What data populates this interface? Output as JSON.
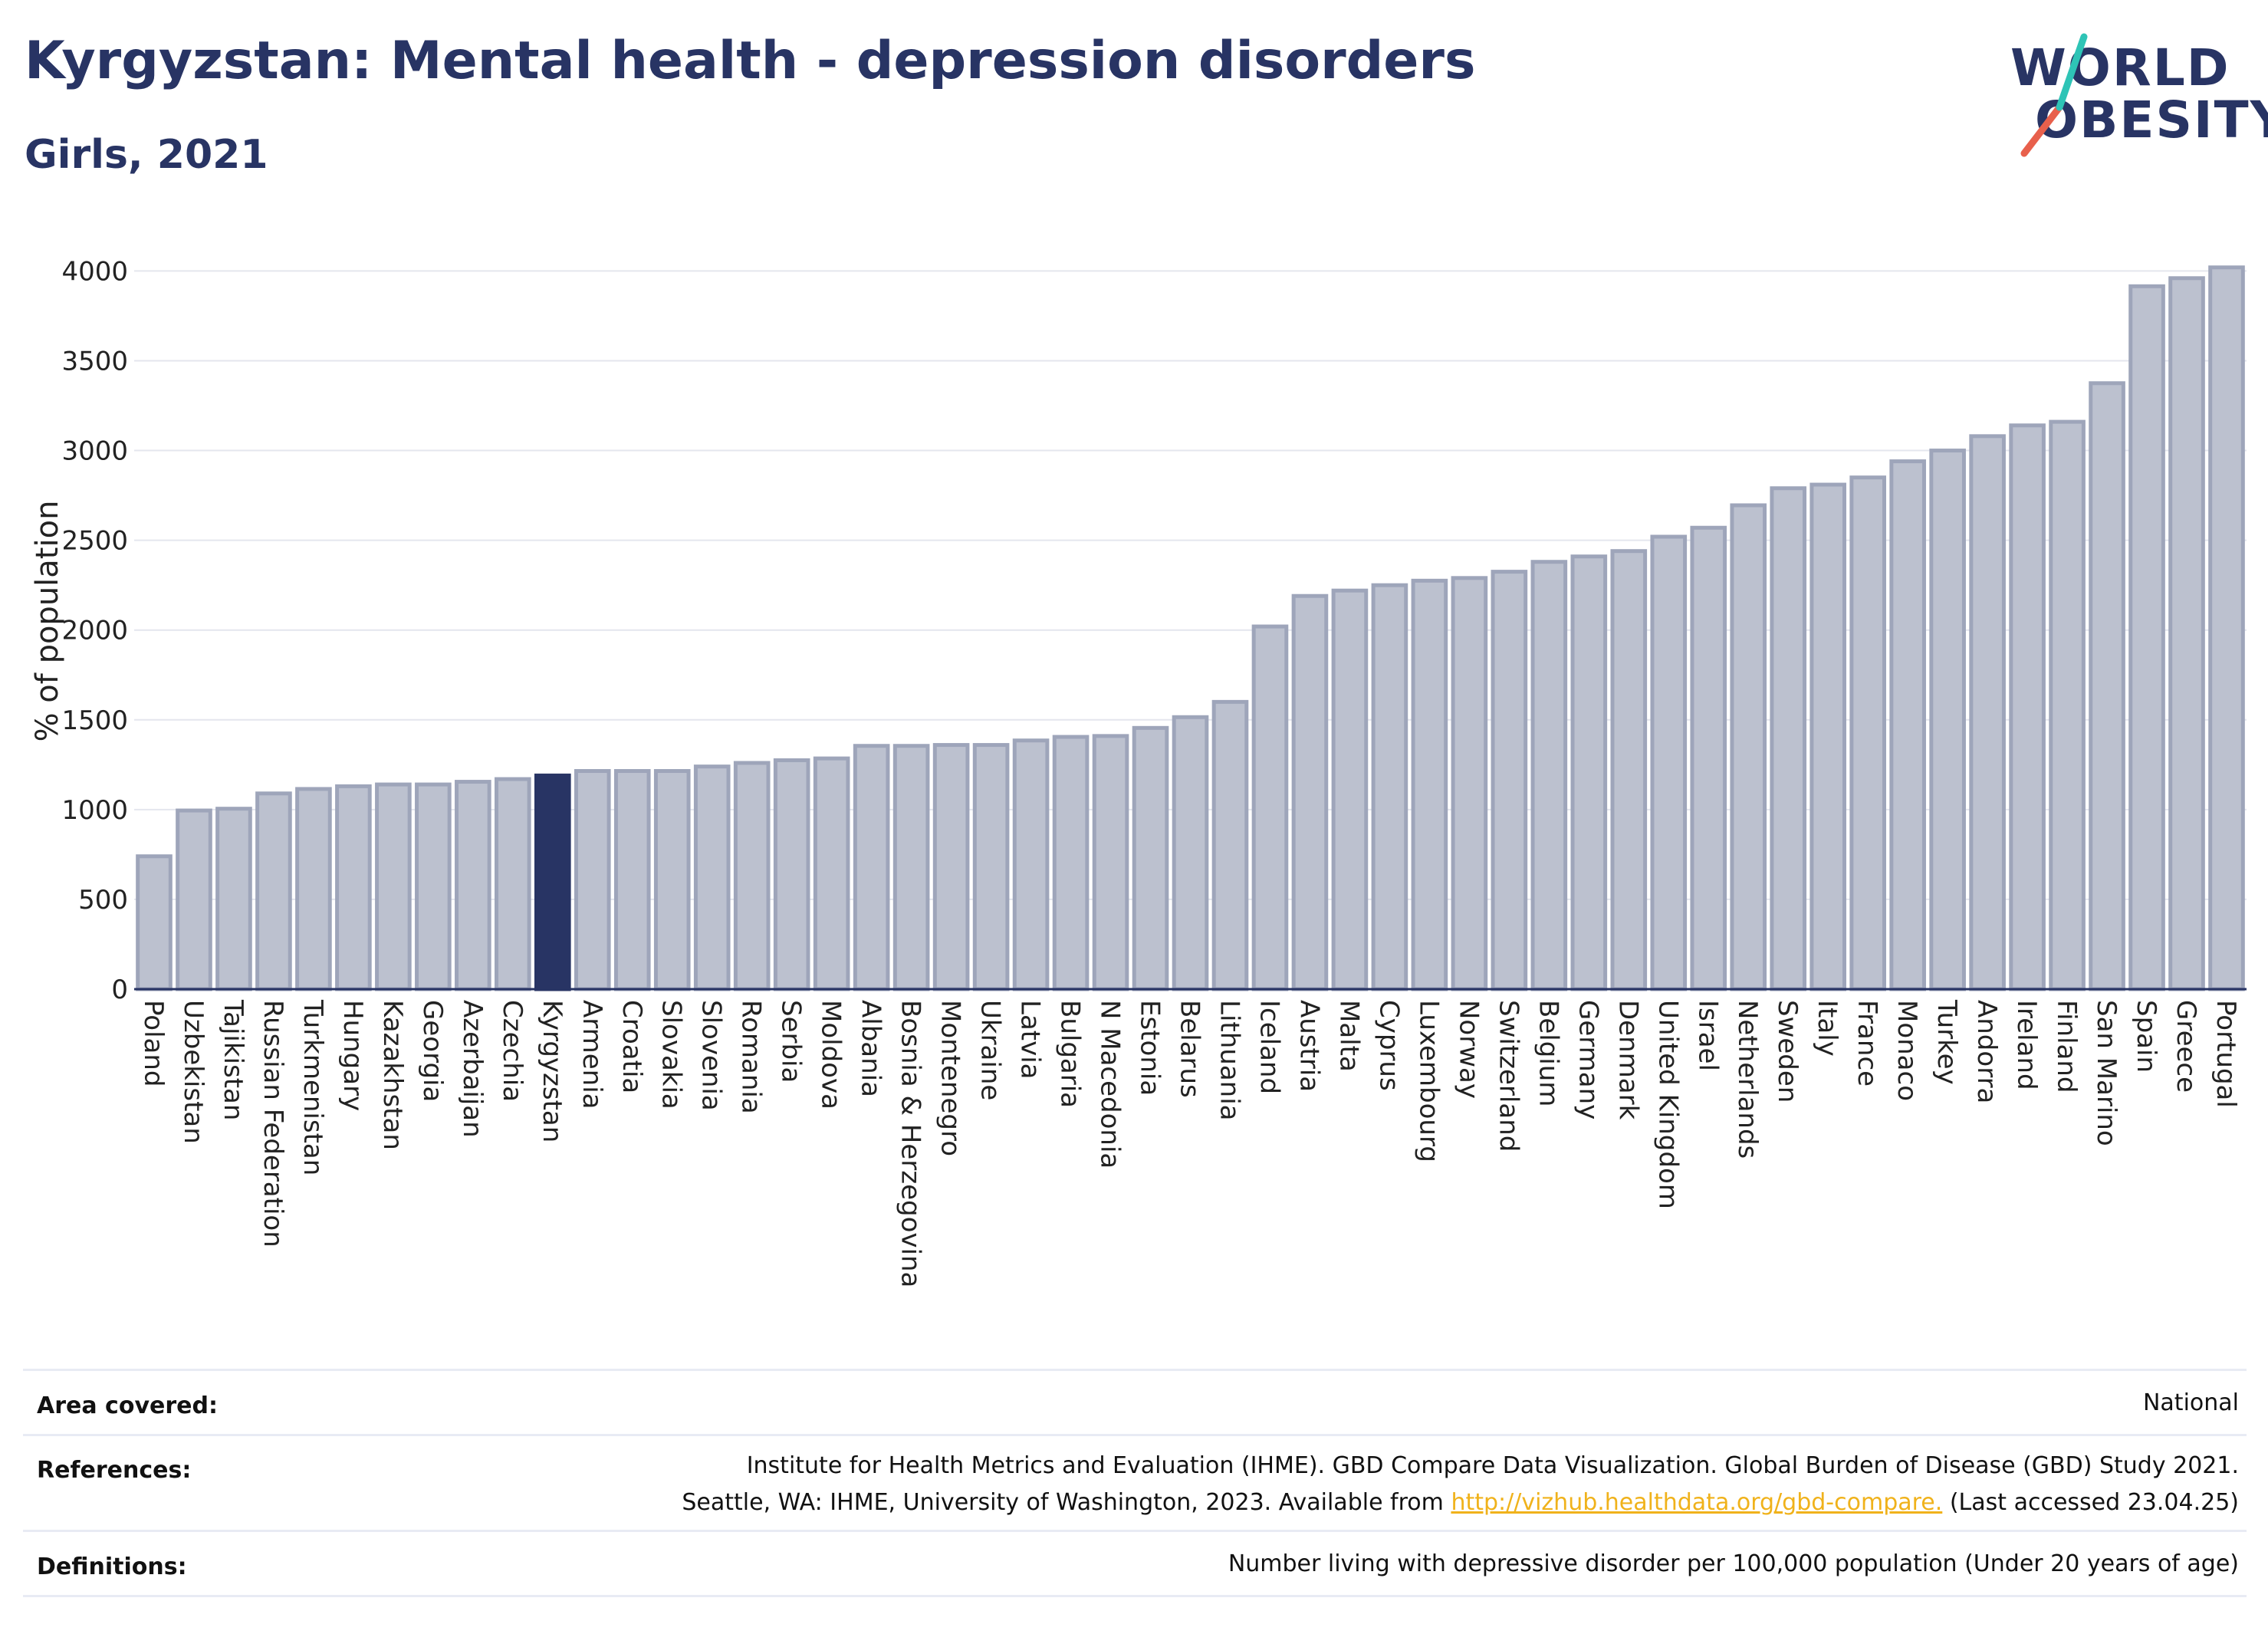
{
  "title": "Kyrgyzstan: Mental health - depression disorders",
  "subtitle": "Girls, 2021",
  "logo": {
    "line1": "WORLD",
    "line2": "OBESITY",
    "accent_colors": [
      "#2ec4b6",
      "#e8604c"
    ]
  },
  "colors": {
    "bar": "#bcc1cf",
    "bar_stroke": "#9ea5ba",
    "highlight": "#283464",
    "title": "#283464"
  },
  "chart_data": {
    "type": "bar",
    "ylabel": "% of population",
    "xlabel": "",
    "ylim": [
      0,
      4100
    ],
    "yticks": [
      0,
      500,
      1000,
      1500,
      2000,
      2500,
      3000,
      3500,
      4000
    ],
    "grid": true,
    "highlight": "Kyrgyzstan",
    "categories": [
      "Poland",
      "Uzbekistan",
      "Tajikistan",
      "Russian Federation",
      "Turkmenistan",
      "Hungary",
      "Kazakhstan",
      "Georgia",
      "Azerbaijan",
      "Czechia",
      "Kyrgyzstan",
      "Armenia",
      "Croatia",
      "Slovakia",
      "Slovenia",
      "Romania",
      "Serbia",
      "Moldova",
      "Albania",
      "Bosnia & Herzegovina",
      "Montenegro",
      "Ukraine",
      "Latvia",
      "Bulgaria",
      "N Macedonia",
      "Estonia",
      "Belarus",
      "Lithuania",
      "Iceland",
      "Austria",
      "Malta",
      "Cyprus",
      "Luxembourg",
      "Norway",
      "Switzerland",
      "Belgium",
      "Germany",
      "Denmark",
      "United Kingdom",
      "Israel",
      "Netherlands",
      "Sweden",
      "Italy",
      "France",
      "Monaco",
      "Turkey",
      "Andorra",
      "Ireland",
      "Finland",
      "San Marino",
      "Spain",
      "Greece",
      "Portugal"
    ],
    "values": [
      740,
      995,
      1005,
      1090,
      1115,
      1130,
      1140,
      1140,
      1155,
      1170,
      1190,
      1215,
      1215,
      1215,
      1240,
      1260,
      1275,
      1285,
      1355,
      1355,
      1360,
      1360,
      1385,
      1405,
      1410,
      1455,
      1515,
      1600,
      2020,
      2190,
      2220,
      2250,
      2275,
      2290,
      2325,
      2380,
      2410,
      2440,
      2520,
      2570,
      2695,
      2790,
      2810,
      2850,
      2940,
      3000,
      3080,
      3140,
      3160,
      3375,
      3915,
      3960,
      4020
    ]
  },
  "footer": {
    "area_label": "Area covered:",
    "area_value": "National",
    "references_label": "References:",
    "references_line1": "Institute for Health Metrics and Evaluation (IHME). GBD Compare Data Visualization. Global Burden of Disease (GBD) Study 2021.",
    "references_line2_pre": "Seattle, WA: IHME, University of Washington, 2023. Available from",
    "references_link": "http://vizhub.healthdata.org/gbd-compare.",
    "references_line2_post": "(Last accessed 23.04.25)",
    "definitions_label": "Definitions:",
    "definitions_value": "Number living with depressive disorder per 100,000 population (Under 20 years of age)"
  }
}
